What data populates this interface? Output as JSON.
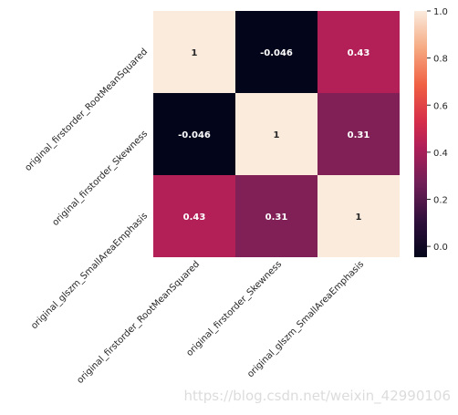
{
  "chart_data": {
    "type": "heatmap",
    "title": "",
    "xlabel": "",
    "ylabel": "",
    "row_labels": [
      "original_firstorder_RootMeanSquared",
      "original_firstorder_Skewness",
      "original_glszm_SmallAreaEmphasis"
    ],
    "col_labels": [
      "original_firstorder_RootMeanSquared",
      "original_firstorder_Skewness",
      "original_glszm_SmallAreaEmphasis"
    ],
    "values": [
      [
        1,
        -0.046,
        0.43
      ],
      [
        -0.046,
        1,
        0.31
      ],
      [
        0.43,
        0.31,
        1
      ]
    ],
    "annotations": [
      [
        "1",
        "-0.046",
        "0.43"
      ],
      [
        "-0.046",
        "1",
        "0.31"
      ],
      [
        "0.43",
        "0.31",
        "1"
      ]
    ],
    "colorbar": {
      "range": [
        -0.046,
        1
      ],
      "ticks": [
        "0.0",
        "0.2",
        "0.4",
        "0.6",
        "0.8",
        "1.0"
      ],
      "tick_values": [
        0,
        0.2,
        0.4,
        0.6,
        0.8,
        1.0
      ],
      "colormap": "rocket"
    }
  },
  "watermark": "https://blog.csdn.net/weixin_42990106"
}
